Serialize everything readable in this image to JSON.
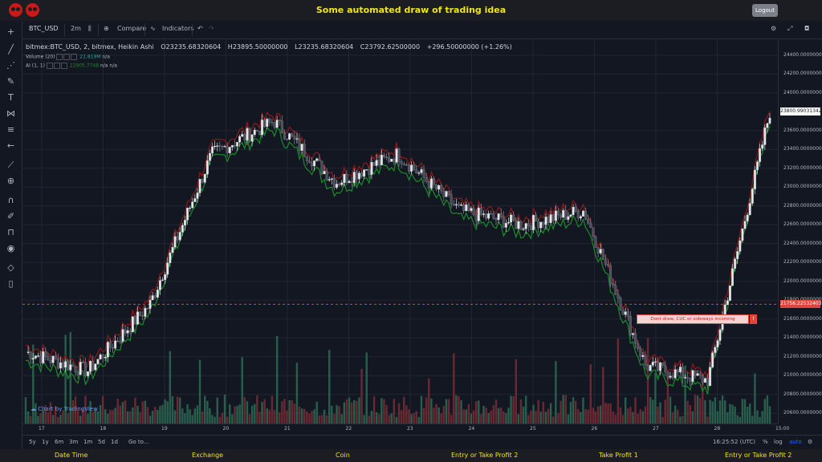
{
  "page": {
    "title": "Some automated draw of trading idea",
    "logout_label": "Logout"
  },
  "toolbar": {
    "symbol": "BTC_USD",
    "interval": "2m",
    "compare_label": "Compare",
    "indicators_label": "Indicators"
  },
  "legend": {
    "main": "bitmex:BTC_USD, 2, bitmex, Heikin Ashi",
    "open": "O23235.68320604",
    "high": "H23895.50000000",
    "low": "L23235.68320604",
    "close": "C23792.62500000",
    "change": "+296.50000000 (+1.26%)",
    "volume_label": "Volume (20)",
    "volume_value": "21.819M",
    "volume_na": "n/a",
    "ai_label": "AI (1, 1)",
    "ai_value": "22905.7748",
    "ai_na1": "n/a",
    "ai_na2": "n/a"
  },
  "yaxis": {
    "ticks": [
      "24400.00000000",
      "24200.00000000",
      "24000.00000000",
      "23800.99031342",
      "23600.00000000",
      "23400.00000000",
      "23200.00000000",
      "23000.00000000",
      "22800.00000000",
      "22600.00000000",
      "22400.00000000",
      "22200.00000000",
      "22000.00000000",
      "21800.00000000",
      "21756.22532403",
      "21600.00000000",
      "21400.00000000",
      "21200.00000000",
      "21000.00000000",
      "20800.00000000",
      "20600.00000000"
    ],
    "current_price": "23800.99031342",
    "line_price": "21756.22532403"
  },
  "xaxis": {
    "ticks": [
      "17",
      "18",
      "19",
      "20",
      "21",
      "22",
      "23",
      "24",
      "25",
      "26",
      "27",
      "28",
      "15:00"
    ]
  },
  "annotation": {
    "text": "Dont draw, CUC or sideways incoming",
    "close_label": "!"
  },
  "watermark": "Chart by TradingView",
  "bottombar": {
    "ranges": [
      "5y",
      "1y",
      "6m",
      "3m",
      "1m",
      "5d",
      "1d"
    ],
    "goto_label": "Go to...",
    "time": "16:25:52 (UTC)",
    "percent_label": "%",
    "log_label": "log",
    "auto_label": "auto"
  },
  "footer": {
    "columns": [
      "Date Time",
      "Exchange",
      "Coin",
      "Entry or Take Profit 2",
      "Take Profit 1",
      "Entry or Take Profit 2"
    ]
  },
  "colors": {
    "up": "#e7e7e7",
    "down": "#4a4e59",
    "red_line": "#8b1a1a",
    "green_line": "#1a8b2a",
    "vol_up": "#2e6b53",
    "vol_down": "#7a2d35",
    "accent": "#f0e516"
  },
  "chart_data": {
    "type": "line",
    "title": "",
    "xlabel": "",
    "ylabel": "",
    "ylim": [
      20500,
      24500
    ],
    "x": [
      "17",
      "18",
      "19",
      "20",
      "21",
      "22",
      "23",
      "24",
      "25",
      "26",
      "27",
      "28",
      "15:00"
    ],
    "series": [
      {
        "values": [
          21250,
          21050,
          21750,
          23350,
          23700,
          23050,
          23350,
          22750,
          22600,
          22750,
          21100,
          20950,
          23800
        ]
      }
    ],
    "annotations": [
      "Dont draw, CUC or sideways incoming"
    ],
    "grid": true
  }
}
